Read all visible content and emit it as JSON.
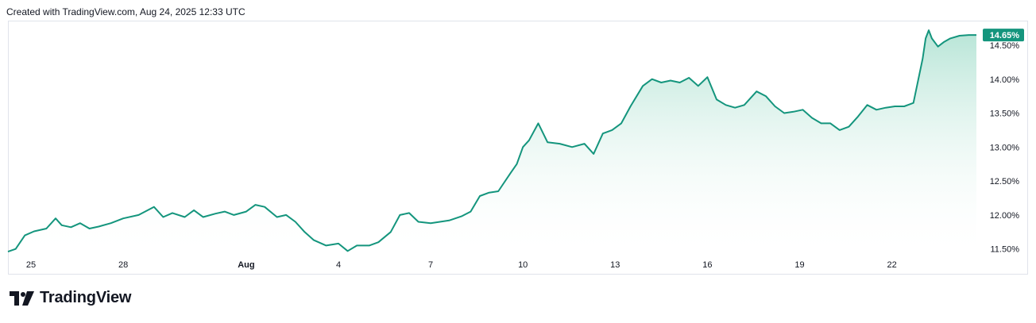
{
  "header": {
    "text": "Created with TradingView.com, Aug 24, 2025 12:33 UTC"
  },
  "footer": {
    "logo_text": "TradingView"
  },
  "colors": {
    "line": "#14957d",
    "fill_top": "#9fdcc9",
    "badge": "#14957d",
    "border": "#e0e3eb"
  },
  "chart_data": {
    "type": "area",
    "title": "",
    "xlabel": "",
    "ylabel": "",
    "last_value_label": "14.65%",
    "y_ticks": [
      "11.50%",
      "12.00%",
      "12.50%",
      "13.00%",
      "13.50%",
      "14.00%",
      "14.50%"
    ],
    "y_tick_values": [
      11.5,
      12.0,
      12.5,
      13.0,
      13.5,
      14.0,
      14.5
    ],
    "ylim": [
      11.45,
      14.85
    ],
    "x_ticks": [
      "25",
      "28",
      "Aug",
      "4",
      "7",
      "10",
      "13",
      "16",
      "19",
      "22"
    ],
    "x_tick_days": [
      0,
      3,
      7,
      10,
      13,
      16,
      19,
      22,
      25,
      28
    ],
    "xlim": [
      -0.75,
      30.75
    ],
    "x_unit": "days from Jul 25, 2025",
    "x": [
      -0.75,
      -0.5,
      -0.2,
      0.1,
      0.5,
      0.8,
      1.0,
      1.3,
      1.6,
      1.9,
      2.2,
      2.6,
      3.0,
      3.5,
      4.0,
      4.3,
      4.6,
      5.0,
      5.3,
      5.6,
      6.0,
      6.3,
      6.6,
      7.0,
      7.3,
      7.6,
      8.0,
      8.3,
      8.6,
      8.9,
      9.2,
      9.6,
      10.0,
      10.3,
      10.6,
      11.0,
      11.3,
      11.7,
      12.0,
      12.3,
      12.6,
      13.0,
      13.3,
      13.6,
      14.0,
      14.3,
      14.6,
      14.9,
      15.2,
      15.6,
      15.8,
      16.0,
      16.2,
      16.5,
      16.8,
      17.2,
      17.6,
      18.0,
      18.3,
      18.6,
      18.9,
      19.2,
      19.5,
      19.9,
      20.2,
      20.5,
      20.8,
      21.1,
      21.4,
      21.7,
      22.0,
      22.3,
      22.6,
      22.9,
      23.2,
      23.6,
      23.9,
      24.2,
      24.5,
      24.8,
      25.1,
      25.4,
      25.7,
      26.0,
      26.3,
      26.6,
      26.9,
      27.2,
      27.5,
      27.8,
      28.1,
      28.4,
      28.7,
      29.0,
      29.1,
      29.2,
      29.3,
      29.5,
      29.7,
      29.9,
      30.2,
      30.5,
      30.75
    ],
    "values": [
      11.46,
      11.5,
      11.7,
      11.76,
      11.8,
      11.95,
      11.85,
      11.82,
      11.88,
      11.8,
      11.83,
      11.88,
      11.95,
      12.0,
      12.12,
      11.97,
      12.03,
      11.97,
      12.07,
      11.97,
      12.02,
      12.05,
      12.0,
      12.05,
      12.15,
      12.12,
      11.97,
      12.0,
      11.9,
      11.75,
      11.63,
      11.55,
      11.58,
      11.47,
      11.55,
      11.55,
      11.6,
      11.75,
      12.0,
      12.03,
      11.9,
      11.88,
      11.9,
      11.92,
      11.98,
      12.05,
      12.28,
      12.33,
      12.35,
      12.62,
      12.75,
      13.0,
      13.1,
      13.35,
      13.07,
      13.05,
      13.0,
      13.05,
      12.9,
      13.2,
      13.25,
      13.35,
      13.6,
      13.9,
      14.0,
      13.95,
      13.98,
      13.95,
      14.02,
      13.9,
      14.03,
      13.7,
      13.62,
      13.58,
      13.62,
      13.82,
      13.75,
      13.6,
      13.5,
      13.52,
      13.55,
      13.43,
      13.35,
      13.35,
      13.25,
      13.3,
      13.45,
      13.62,
      13.55,
      13.58,
      13.6,
      13.6,
      13.65,
      14.3,
      14.6,
      14.72,
      14.6,
      14.48,
      14.55,
      14.6,
      14.64,
      14.65,
      14.65
    ]
  }
}
